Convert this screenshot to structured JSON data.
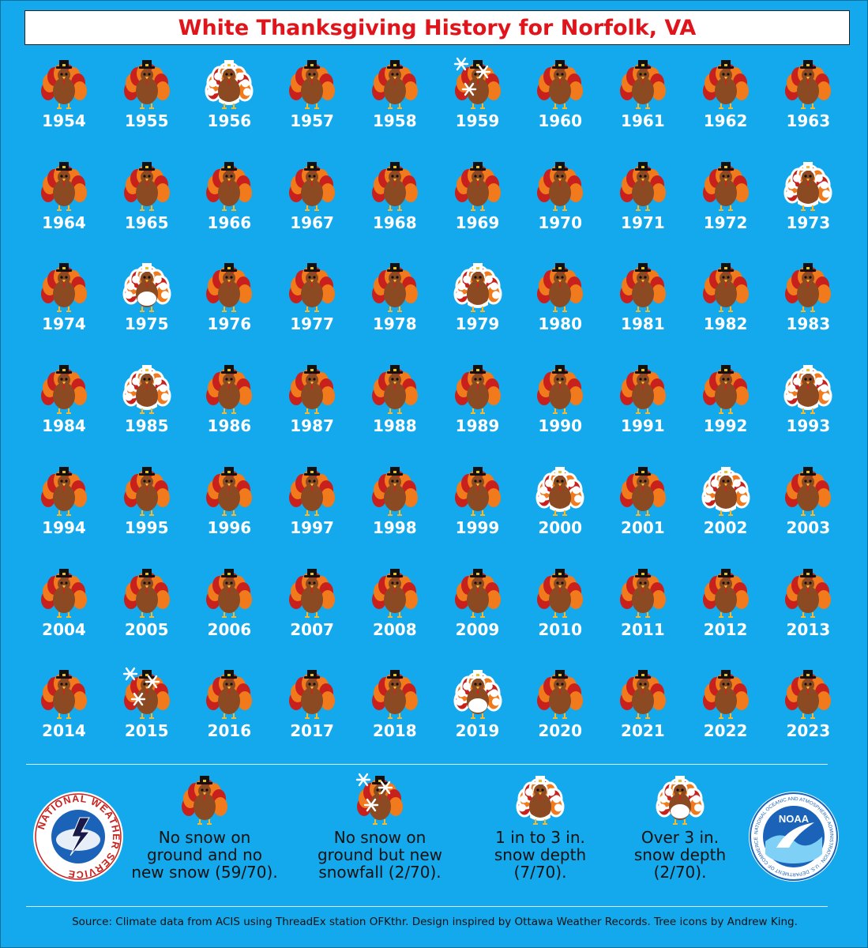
{
  "title": "White Thanksgiving History for Norfolk, VA",
  "years": [
    {
      "year": "1954",
      "cat": "none"
    },
    {
      "year": "1955",
      "cat": "none"
    },
    {
      "year": "1956",
      "cat": "1to3"
    },
    {
      "year": "1957",
      "cat": "none"
    },
    {
      "year": "1958",
      "cat": "none"
    },
    {
      "year": "1959",
      "cat": "newsnow"
    },
    {
      "year": "1960",
      "cat": "none"
    },
    {
      "year": "1961",
      "cat": "none"
    },
    {
      "year": "1962",
      "cat": "none"
    },
    {
      "year": "1963",
      "cat": "none"
    },
    {
      "year": "1964",
      "cat": "none"
    },
    {
      "year": "1965",
      "cat": "none"
    },
    {
      "year": "1966",
      "cat": "none"
    },
    {
      "year": "1967",
      "cat": "none"
    },
    {
      "year": "1968",
      "cat": "none"
    },
    {
      "year": "1969",
      "cat": "none"
    },
    {
      "year": "1970",
      "cat": "none"
    },
    {
      "year": "1971",
      "cat": "none"
    },
    {
      "year": "1972",
      "cat": "none"
    },
    {
      "year": "1973",
      "cat": "1to3"
    },
    {
      "year": "1974",
      "cat": "none"
    },
    {
      "year": "1975",
      "cat": "over3"
    },
    {
      "year": "1976",
      "cat": "none"
    },
    {
      "year": "1977",
      "cat": "none"
    },
    {
      "year": "1978",
      "cat": "none"
    },
    {
      "year": "1979",
      "cat": "1to3"
    },
    {
      "year": "1980",
      "cat": "none"
    },
    {
      "year": "1981",
      "cat": "none"
    },
    {
      "year": "1982",
      "cat": "none"
    },
    {
      "year": "1983",
      "cat": "none"
    },
    {
      "year": "1984",
      "cat": "none"
    },
    {
      "year": "1985",
      "cat": "1to3"
    },
    {
      "year": "1986",
      "cat": "none"
    },
    {
      "year": "1987",
      "cat": "none"
    },
    {
      "year": "1988",
      "cat": "none"
    },
    {
      "year": "1989",
      "cat": "none"
    },
    {
      "year": "1990",
      "cat": "none"
    },
    {
      "year": "1991",
      "cat": "none"
    },
    {
      "year": "1992",
      "cat": "none"
    },
    {
      "year": "1993",
      "cat": "1to3"
    },
    {
      "year": "1994",
      "cat": "none"
    },
    {
      "year": "1995",
      "cat": "none"
    },
    {
      "year": "1996",
      "cat": "none"
    },
    {
      "year": "1997",
      "cat": "none"
    },
    {
      "year": "1998",
      "cat": "none"
    },
    {
      "year": "1999",
      "cat": "none"
    },
    {
      "year": "2000",
      "cat": "1to3"
    },
    {
      "year": "2001",
      "cat": "none"
    },
    {
      "year": "2002",
      "cat": "1to3"
    },
    {
      "year": "2003",
      "cat": "none"
    },
    {
      "year": "2004",
      "cat": "none"
    },
    {
      "year": "2005",
      "cat": "none"
    },
    {
      "year": "2006",
      "cat": "none"
    },
    {
      "year": "2007",
      "cat": "none"
    },
    {
      "year": "2008",
      "cat": "none"
    },
    {
      "year": "2009",
      "cat": "none"
    },
    {
      "year": "2010",
      "cat": "none"
    },
    {
      "year": "2011",
      "cat": "none"
    },
    {
      "year": "2012",
      "cat": "none"
    },
    {
      "year": "2013",
      "cat": "none"
    },
    {
      "year": "2014",
      "cat": "none"
    },
    {
      "year": "2015",
      "cat": "newsnow"
    },
    {
      "year": "2016",
      "cat": "none"
    },
    {
      "year": "2017",
      "cat": "none"
    },
    {
      "year": "2018",
      "cat": "none"
    },
    {
      "year": "2019",
      "cat": "over3"
    },
    {
      "year": "2020",
      "cat": "none"
    },
    {
      "year": "2021",
      "cat": "none"
    },
    {
      "year": "2022",
      "cat": "none"
    },
    {
      "year": "2023",
      "cat": "none"
    }
  ],
  "legend": [
    {
      "cat": "none",
      "lines": [
        "No snow on",
        "ground and no",
        "new snow (59/70)."
      ]
    },
    {
      "cat": "newsnow",
      "lines": [
        "No snow on",
        "ground but new",
        "snowfall (2/70)."
      ]
    },
    {
      "cat": "1to3",
      "lines": [
        "1 in to 3 in.",
        "snow depth",
        "(7/70)."
      ]
    },
    {
      "cat": "over3",
      "lines": [
        "Over 3 in.",
        "snow depth",
        "(2/70)."
      ]
    }
  ],
  "logos": {
    "nws_text": "NATIONAL WEATHER SERVICE",
    "noaa_text": "NOAA",
    "noaa_ring_text": "NATIONAL OCEANIC AND ATMOSPHERIC ADMINISTRATION · U.S. DEPARTMENT OF COMMERCE"
  },
  "source": "Source: Climate data from ACIS using ThreadEx station OFKthr. Design inspired by Ottawa Weather Records. Tree icons by Andrew King.",
  "colors": {
    "background": "#14a9ec",
    "title": "#e0141b",
    "feather_red": "#c8201c",
    "feather_orange": "#f07a1c",
    "body": "#8b4a22",
    "snow": "#ffffff"
  }
}
